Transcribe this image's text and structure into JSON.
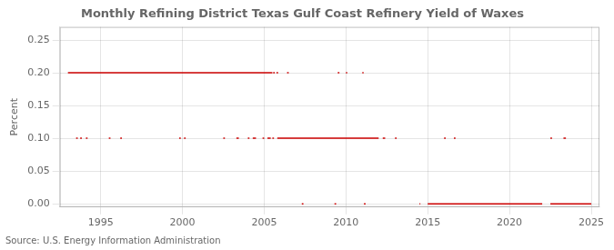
{
  "chart_data": {
    "type": "line",
    "title": "Monthly Refining District Texas Gulf Coast Refinery Yield of Waxes",
    "ylabel": "Percent",
    "annotation": "Source: U.S. Energy Information Administration",
    "color": "#cc0000",
    "grid": true,
    "xlim": [
      1992.5,
      2025.5
    ],
    "ylim": [
      -0.005,
      0.27
    ],
    "xticks": [
      1995,
      2000,
      2005,
      2010,
      2015,
      2020,
      2025
    ],
    "yticks": [
      {
        "value": 0.0,
        "label": "0.00"
      },
      0.05,
      {
        "value": 0.1,
        "label": "0.10"
      },
      0.15,
      {
        "value": 0.2,
        "label": "0.20"
      },
      0.25
    ],
    "series": [
      {
        "value": 0.2,
        "segments": [
          [
            1993.0,
            2005.5
          ],
          [
            2005.55,
            2005.65
          ],
          [
            2005.75,
            2005.85
          ],
          [
            2006.4,
            2006.5
          ],
          [
            2009.5,
            2009.6
          ],
          [
            2010.0,
            2010.08
          ],
          [
            2011.0,
            2011.08
          ]
        ]
      },
      {
        "value": 0.1,
        "segments": [
          [
            1993.5,
            1993.6
          ],
          [
            1993.75,
            1993.85
          ],
          [
            1994.1,
            1994.2
          ],
          [
            1995.5,
            1995.6
          ],
          [
            1996.2,
            1996.3
          ],
          [
            1999.8,
            1999.9
          ],
          [
            2000.1,
            2000.2
          ],
          [
            2002.5,
            2002.6
          ],
          [
            2003.3,
            2003.45
          ],
          [
            2004.0,
            2004.1
          ],
          [
            2004.3,
            2004.5
          ],
          [
            2004.9,
            2005.0
          ],
          [
            2005.2,
            2005.4
          ],
          [
            2005.5,
            2005.6
          ],
          [
            2005.8,
            2012.0
          ],
          [
            2012.25,
            2012.4
          ],
          [
            2013.0,
            2013.1
          ],
          [
            2016.0,
            2016.1
          ],
          [
            2016.6,
            2016.7
          ],
          [
            2022.5,
            2022.6
          ],
          [
            2023.3,
            2023.45
          ]
        ]
      },
      {
        "value": 0.0,
        "segments": [
          [
            2007.3,
            2007.4
          ],
          [
            2009.3,
            2009.4
          ],
          [
            2011.1,
            2011.2
          ],
          [
            2014.5,
            2014.55
          ],
          [
            2015.0,
            2022.0
          ],
          [
            2022.5,
            2025.0
          ]
        ]
      }
    ]
  }
}
